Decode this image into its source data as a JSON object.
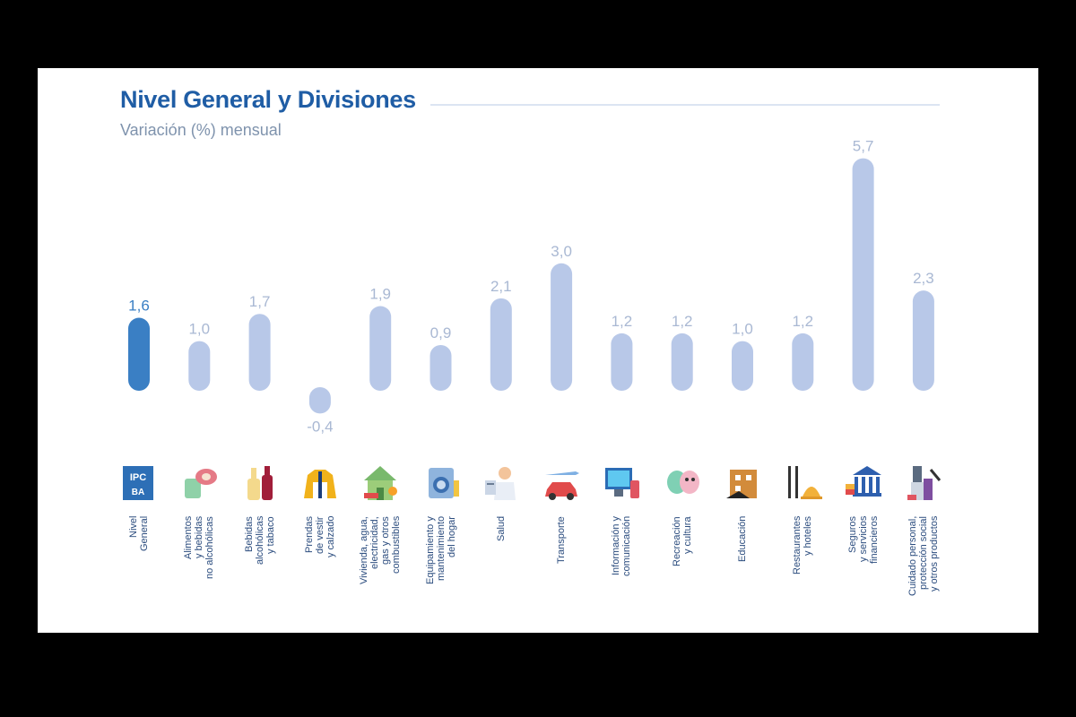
{
  "title": "Nivel General y Divisiones",
  "subtitle": "Variación (%) mensual",
  "colors": {
    "highlight": "#3a7fc4",
    "bar": "#b8c8e8",
    "highlight_label": "#3a7fc4",
    "label": "#a9b8d3",
    "title": "#1f5da5"
  },
  "chart_data": {
    "type": "bar",
    "title": "Nivel General y Divisiones",
    "subtitle": "Variación (%) mensual",
    "xlabel": "",
    "ylabel": "",
    "ylim": [
      -0.4,
      5.7
    ],
    "grid": false,
    "legend": "none",
    "highlight_index": 0,
    "categories": [
      "Nivel\nGeneral",
      "Alimentos\ny bebidas\nno alcohólicas",
      "Bebidas\nalcohólicas\ny tabaco",
      "Prendas\nde vestir\ny calzado",
      "Vivienda, agua,\nelectricidad,\ngas y otros\ncombustibles",
      "Equipamiento y\nmantenimiento\ndel hogar",
      "Salud",
      "Transporte",
      "Información y\ncomunicación",
      "Recreación\ny cultura",
      "Educación",
      "Restaurantes\ny hoteles",
      "Seguros\ny servicios\nfinancieros",
      "Cuidado personal,\nprotección social\ny otros productos"
    ],
    "values": [
      1.6,
      1.0,
      1.7,
      -0.4,
      1.9,
      0.9,
      2.1,
      3.0,
      1.2,
      1.2,
      1.0,
      1.2,
      5.7,
      2.3
    ],
    "value_labels": [
      "1,6",
      "1,0",
      "1,7",
      "-0,4",
      "1,9",
      "0,9",
      "2,1",
      "3,0",
      "1,2",
      "1,2",
      "1,0",
      "1,2",
      "5,7",
      "2,3"
    ],
    "icons": [
      "ipc-logo-icon",
      "food-icon",
      "bottle-icon",
      "jacket-icon",
      "house-icon",
      "washing-machine-icon",
      "doctor-icon",
      "car-plane-icon",
      "computer-icon",
      "theater-masks-icon",
      "school-icon",
      "restaurant-icon",
      "bank-icon",
      "personal-care-icon"
    ]
  }
}
